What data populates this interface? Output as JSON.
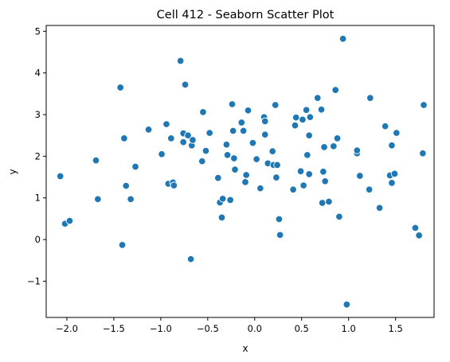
{
  "chart_data": {
    "type": "scatter",
    "title": "Cell 412 - Seaborn Scatter Plot",
    "xlabel": "x",
    "ylabel": "y",
    "xlim": [
      -2.22,
      1.91
    ],
    "ylim": [
      -1.87,
      5.14
    ],
    "xticks": [
      -2.0,
      -1.5,
      -1.0,
      -0.5,
      0.0,
      0.5,
      1.0,
      1.5
    ],
    "xtick_labels": [
      "−2.0",
      "−1.5",
      "−1.0",
      "−0.5",
      "0.0",
      "0.5",
      "1.0",
      "1.5"
    ],
    "yticks": [
      -1,
      0,
      1,
      2,
      3,
      4,
      5
    ],
    "ytick_labels": [
      "−1",
      "0",
      "1",
      "2",
      "3",
      "4",
      "5"
    ],
    "grid": false,
    "legend": "none",
    "marker_color": "#1f77b4",
    "points": [
      {
        "x": -2.07,
        "y": 1.52
      },
      {
        "x": -2.02,
        "y": 0.38
      },
      {
        "x": -1.97,
        "y": 0.45
      },
      {
        "x": -1.69,
        "y": 1.9
      },
      {
        "x": -1.67,
        "y": 0.97
      },
      {
        "x": -1.43,
        "y": 3.65
      },
      {
        "x": -1.41,
        "y": -0.13
      },
      {
        "x": -1.39,
        "y": 2.43
      },
      {
        "x": -1.37,
        "y": 1.29
      },
      {
        "x": -1.32,
        "y": 0.97
      },
      {
        "x": -1.27,
        "y": 1.75
      },
      {
        "x": -1.13,
        "y": 2.64
      },
      {
        "x": -0.99,
        "y": 2.05
      },
      {
        "x": -0.94,
        "y": 2.77
      },
      {
        "x": -0.92,
        "y": 1.34
      },
      {
        "x": -0.89,
        "y": 2.43
      },
      {
        "x": -0.87,
        "y": 1.37
      },
      {
        "x": -0.86,
        "y": 1.3
      },
      {
        "x": -0.79,
        "y": 4.29
      },
      {
        "x": -0.76,
        "y": 2.55
      },
      {
        "x": -0.76,
        "y": 2.34
      },
      {
        "x": -0.74,
        "y": 3.72
      },
      {
        "x": -0.71,
        "y": 2.5
      },
      {
        "x": -0.68,
        "y": -0.47
      },
      {
        "x": -0.67,
        "y": 2.26
      },
      {
        "x": -0.66,
        "y": 2.39
      },
      {
        "x": -0.56,
        "y": 1.88
      },
      {
        "x": -0.55,
        "y": 3.06
      },
      {
        "x": -0.52,
        "y": 2.13
      },
      {
        "x": -0.48,
        "y": 2.56
      },
      {
        "x": -0.39,
        "y": 1.48
      },
      {
        "x": -0.37,
        "y": 0.89
      },
      {
        "x": -0.35,
        "y": 0.53
      },
      {
        "x": -0.34,
        "y": 0.98
      },
      {
        "x": -0.3,
        "y": 2.28
      },
      {
        "x": -0.29,
        "y": 2.03
      },
      {
        "x": -0.26,
        "y": 0.95
      },
      {
        "x": -0.24,
        "y": 3.25
      },
      {
        "x": -0.23,
        "y": 2.61
      },
      {
        "x": -0.22,
        "y": 1.95
      },
      {
        "x": -0.21,
        "y": 1.68
      },
      {
        "x": -0.14,
        "y": 2.81
      },
      {
        "x": -0.12,
        "y": 2.61
      },
      {
        "x": -0.1,
        "y": 1.38
      },
      {
        "x": -0.09,
        "y": 1.55
      },
      {
        "x": -0.07,
        "y": 3.1
      },
      {
        "x": -0.02,
        "y": 2.32
      },
      {
        "x": 0.02,
        "y": 1.93
      },
      {
        "x": 0.06,
        "y": 1.23
      },
      {
        "x": 0.1,
        "y": 2.94
      },
      {
        "x": 0.11,
        "y": 2.84
      },
      {
        "x": 0.11,
        "y": 2.52
      },
      {
        "x": 0.14,
        "y": 1.83
      },
      {
        "x": 0.19,
        "y": 2.12
      },
      {
        "x": 0.2,
        "y": 1.79
      },
      {
        "x": 0.22,
        "y": 3.23
      },
      {
        "x": 0.23,
        "y": 1.49
      },
      {
        "x": 0.24,
        "y": 1.79
      },
      {
        "x": 0.26,
        "y": 0.49
      },
      {
        "x": 0.27,
        "y": 0.11
      },
      {
        "x": 0.41,
        "y": 1.2
      },
      {
        "x": 0.43,
        "y": 2.74
      },
      {
        "x": 0.44,
        "y": 2.93
      },
      {
        "x": 0.49,
        "y": 1.64
      },
      {
        "x": 0.51,
        "y": 2.88
      },
      {
        "x": 0.52,
        "y": 1.3
      },
      {
        "x": 0.55,
        "y": 3.11
      },
      {
        "x": 0.56,
        "y": 2.03
      },
      {
        "x": 0.58,
        "y": 2.5
      },
      {
        "x": 0.58,
        "y": 1.57
      },
      {
        "x": 0.59,
        "y": 2.94
      },
      {
        "x": 0.67,
        "y": 3.4
      },
      {
        "x": 0.71,
        "y": 3.12
      },
      {
        "x": 0.72,
        "y": 0.88
      },
      {
        "x": 0.73,
        "y": 1.63
      },
      {
        "x": 0.74,
        "y": 2.22
      },
      {
        "x": 0.75,
        "y": 1.4
      },
      {
        "x": 0.79,
        "y": 0.91
      },
      {
        "x": 0.84,
        "y": 2.24
      },
      {
        "x": 0.86,
        "y": 3.59
      },
      {
        "x": 0.88,
        "y": 2.43
      },
      {
        "x": 0.9,
        "y": 0.55
      },
      {
        "x": 0.94,
        "y": 4.82
      },
      {
        "x": 0.98,
        "y": -1.56
      },
      {
        "x": 1.09,
        "y": 2.07
      },
      {
        "x": 1.09,
        "y": 2.14
      },
      {
        "x": 1.12,
        "y": 1.53
      },
      {
        "x": 1.22,
        "y": 1.2
      },
      {
        "x": 1.23,
        "y": 3.4
      },
      {
        "x": 1.33,
        "y": 0.76
      },
      {
        "x": 1.39,
        "y": 2.72
      },
      {
        "x": 1.44,
        "y": 1.54
      },
      {
        "x": 1.46,
        "y": 2.26
      },
      {
        "x": 1.46,
        "y": 1.36
      },
      {
        "x": 1.49,
        "y": 1.58
      },
      {
        "x": 1.51,
        "y": 2.56
      },
      {
        "x": 1.71,
        "y": 0.28
      },
      {
        "x": 1.75,
        "y": 0.1
      },
      {
        "x": 1.79,
        "y": 2.07
      },
      {
        "x": 1.8,
        "y": 3.23
      }
    ]
  }
}
